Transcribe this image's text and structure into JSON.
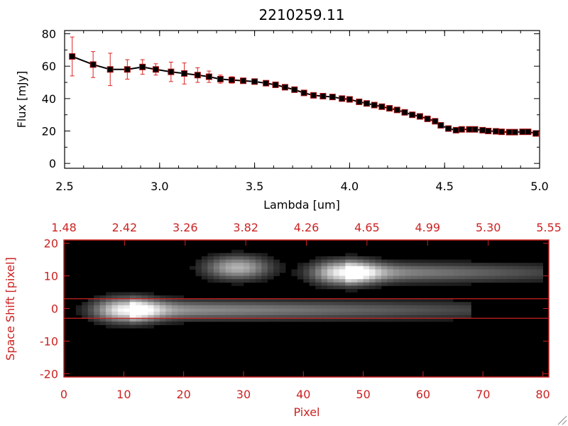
{
  "colors": {
    "axis_top": "#000000",
    "axis_bottom": "#cc2222",
    "errorbar": "#dd2222",
    "marker": "#000000",
    "marker_edge": "#aa1111"
  },
  "chart_data": [
    {
      "type": "line",
      "title": "2210259.11",
      "xlabel": "Lambda [um]",
      "ylabel": "Flux [mJy]",
      "xlim": [
        2.5,
        5.0
      ],
      "ylim": [
        -3,
        82
      ],
      "xticks": [
        "2.5",
        "3.0",
        "3.5",
        "4.0",
        "4.5",
        "5.0"
      ],
      "xtick_values": [
        2.5,
        3.0,
        3.5,
        4.0,
        4.5,
        5.0
      ],
      "yticks": [
        "0",
        "20",
        "40",
        "60",
        "80"
      ],
      "ytick_values": [
        0,
        20,
        40,
        60,
        80
      ],
      "grid": false,
      "series": [
        {
          "x": [
            2.54,
            2.65,
            2.74,
            2.83,
            2.91,
            2.98,
            3.06,
            3.13,
            3.2,
            3.26,
            3.32,
            3.38,
            3.44,
            3.5,
            3.56,
            3.61,
            3.66,
            3.71,
            3.76,
            3.81,
            3.86,
            3.91,
            3.96,
            4.0,
            4.05,
            4.09,
            4.13,
            4.17,
            4.21,
            4.25,
            4.29,
            4.33,
            4.37,
            4.41,
            4.45,
            4.48,
            4.52,
            4.56,
            4.59,
            4.63,
            4.66,
            4.7,
            4.73,
            4.77,
            4.8,
            4.84,
            4.87,
            4.91,
            4.94,
            4.98
          ],
          "y": [
            66,
            61,
            58,
            58,
            59.5,
            58,
            56.5,
            55.5,
            54.5,
            53.5,
            52,
            51.5,
            51,
            50.5,
            49.5,
            48.5,
            47,
            45.5,
            43.5,
            42,
            41.5,
            41,
            40,
            39.5,
            38,
            37,
            36,
            35,
            34,
            33,
            31.5,
            30,
            29,
            27.5,
            26,
            23.5,
            21.5,
            20.5,
            21,
            21,
            21,
            20.5,
            20,
            19.8,
            19.5,
            19.3,
            19.3,
            19.5,
            19.5,
            18.5
          ],
          "err": [
            12,
            8,
            10,
            6,
            4.5,
            3.5,
            6,
            6.5,
            4.5,
            3.5,
            2.5,
            2,
            1.5,
            1.2,
            1.2,
            1.2,
            1.2,
            1.2,
            1.2,
            1.2,
            1,
            1,
            1,
            1,
            1,
            1,
            1,
            1,
            1,
            1,
            1,
            1,
            1,
            1,
            1,
            1,
            1,
            1,
            1,
            1,
            1,
            1,
            1,
            1,
            1,
            1,
            1,
            1,
            1,
            1
          ]
        }
      ]
    },
    {
      "type": "heatmap",
      "xlabel": "Pixel",
      "ylabel": "Space Shift [pixel]",
      "xlim": [
        0,
        81
      ],
      "ylim": [
        -21,
        21
      ],
      "xticks": [
        "0",
        "10",
        "20",
        "30",
        "40",
        "50",
        "60",
        "70",
        "80"
      ],
      "xtick_values": [
        0,
        10,
        20,
        30,
        40,
        50,
        60,
        70,
        80
      ],
      "yticks": [
        "-20",
        "-10",
        "0",
        "10",
        "20"
      ],
      "ytick_values": [
        -20,
        -10,
        0,
        10,
        20
      ],
      "top_ticks": [
        "1.48",
        "2.42",
        "3.26",
        "3.82",
        "4.26",
        "4.65",
        "4.99",
        "5.30",
        "5.55"
      ],
      "extraction_window": [
        -3,
        3
      ],
      "colormap": "grayscale",
      "sources": [
        {
          "x": 10.5,
          "y": -0.5,
          "peak": 1.0,
          "tail_end": 68
        },
        {
          "x": 47,
          "y": 11,
          "peak": 1.0,
          "tail_end": 80
        },
        {
          "x": 29,
          "y": 12.5,
          "peak": 0.65,
          "tail_end": 0
        }
      ]
    }
  ]
}
